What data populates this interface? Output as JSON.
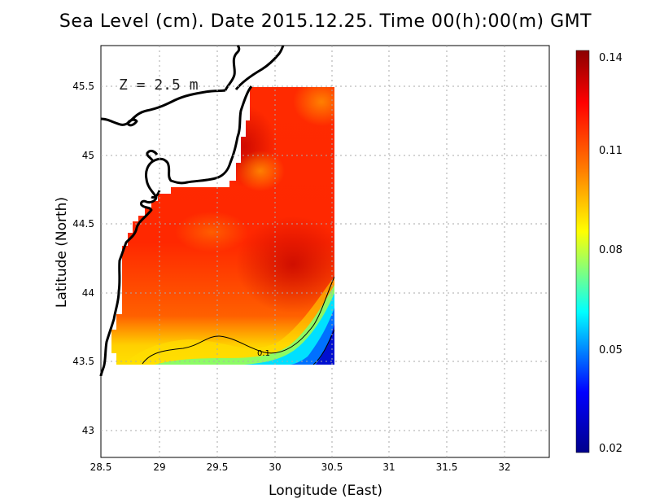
{
  "title": "Sea Level (cm). Date 2015.12.25. Time 00(h):00(m) GMT",
  "depth_note": "Z = 2.5 m",
  "x_axis_label": "Longitude (East)",
  "y_axis_label": "Latitude (North)",
  "x_ticks": [
    "28.5",
    "29",
    "29.5",
    "30",
    "30.5",
    "31",
    "31.5",
    "32"
  ],
  "y_ticks": [
    "43",
    "43.5",
    "44",
    "44.5",
    "45",
    "45.5"
  ],
  "colorbar_ticks": [
    "0.02",
    "0.05",
    "0.08",
    "0.11",
    "0.14"
  ],
  "contour_label": "0.1",
  "chart_data": {
    "type": "heatmap",
    "title": "Sea Level (cm). Date 2015.12.25. Time 00(h):00(m) GMT",
    "xlabel": "Longitude (East)",
    "ylabel": "Latitude (North)",
    "xlim": [
      28.5,
      32.4
    ],
    "ylim": [
      42.8,
      45.8
    ],
    "value_range": [
      0.02,
      0.14
    ],
    "colormap": [
      "#00008b",
      "#0000ff",
      "#00ffff",
      "#ffff00",
      "#ff8000",
      "#ff0000",
      "#8b0000"
    ],
    "grid": true,
    "contours": [
      {
        "level": 0.1
      }
    ]
  }
}
